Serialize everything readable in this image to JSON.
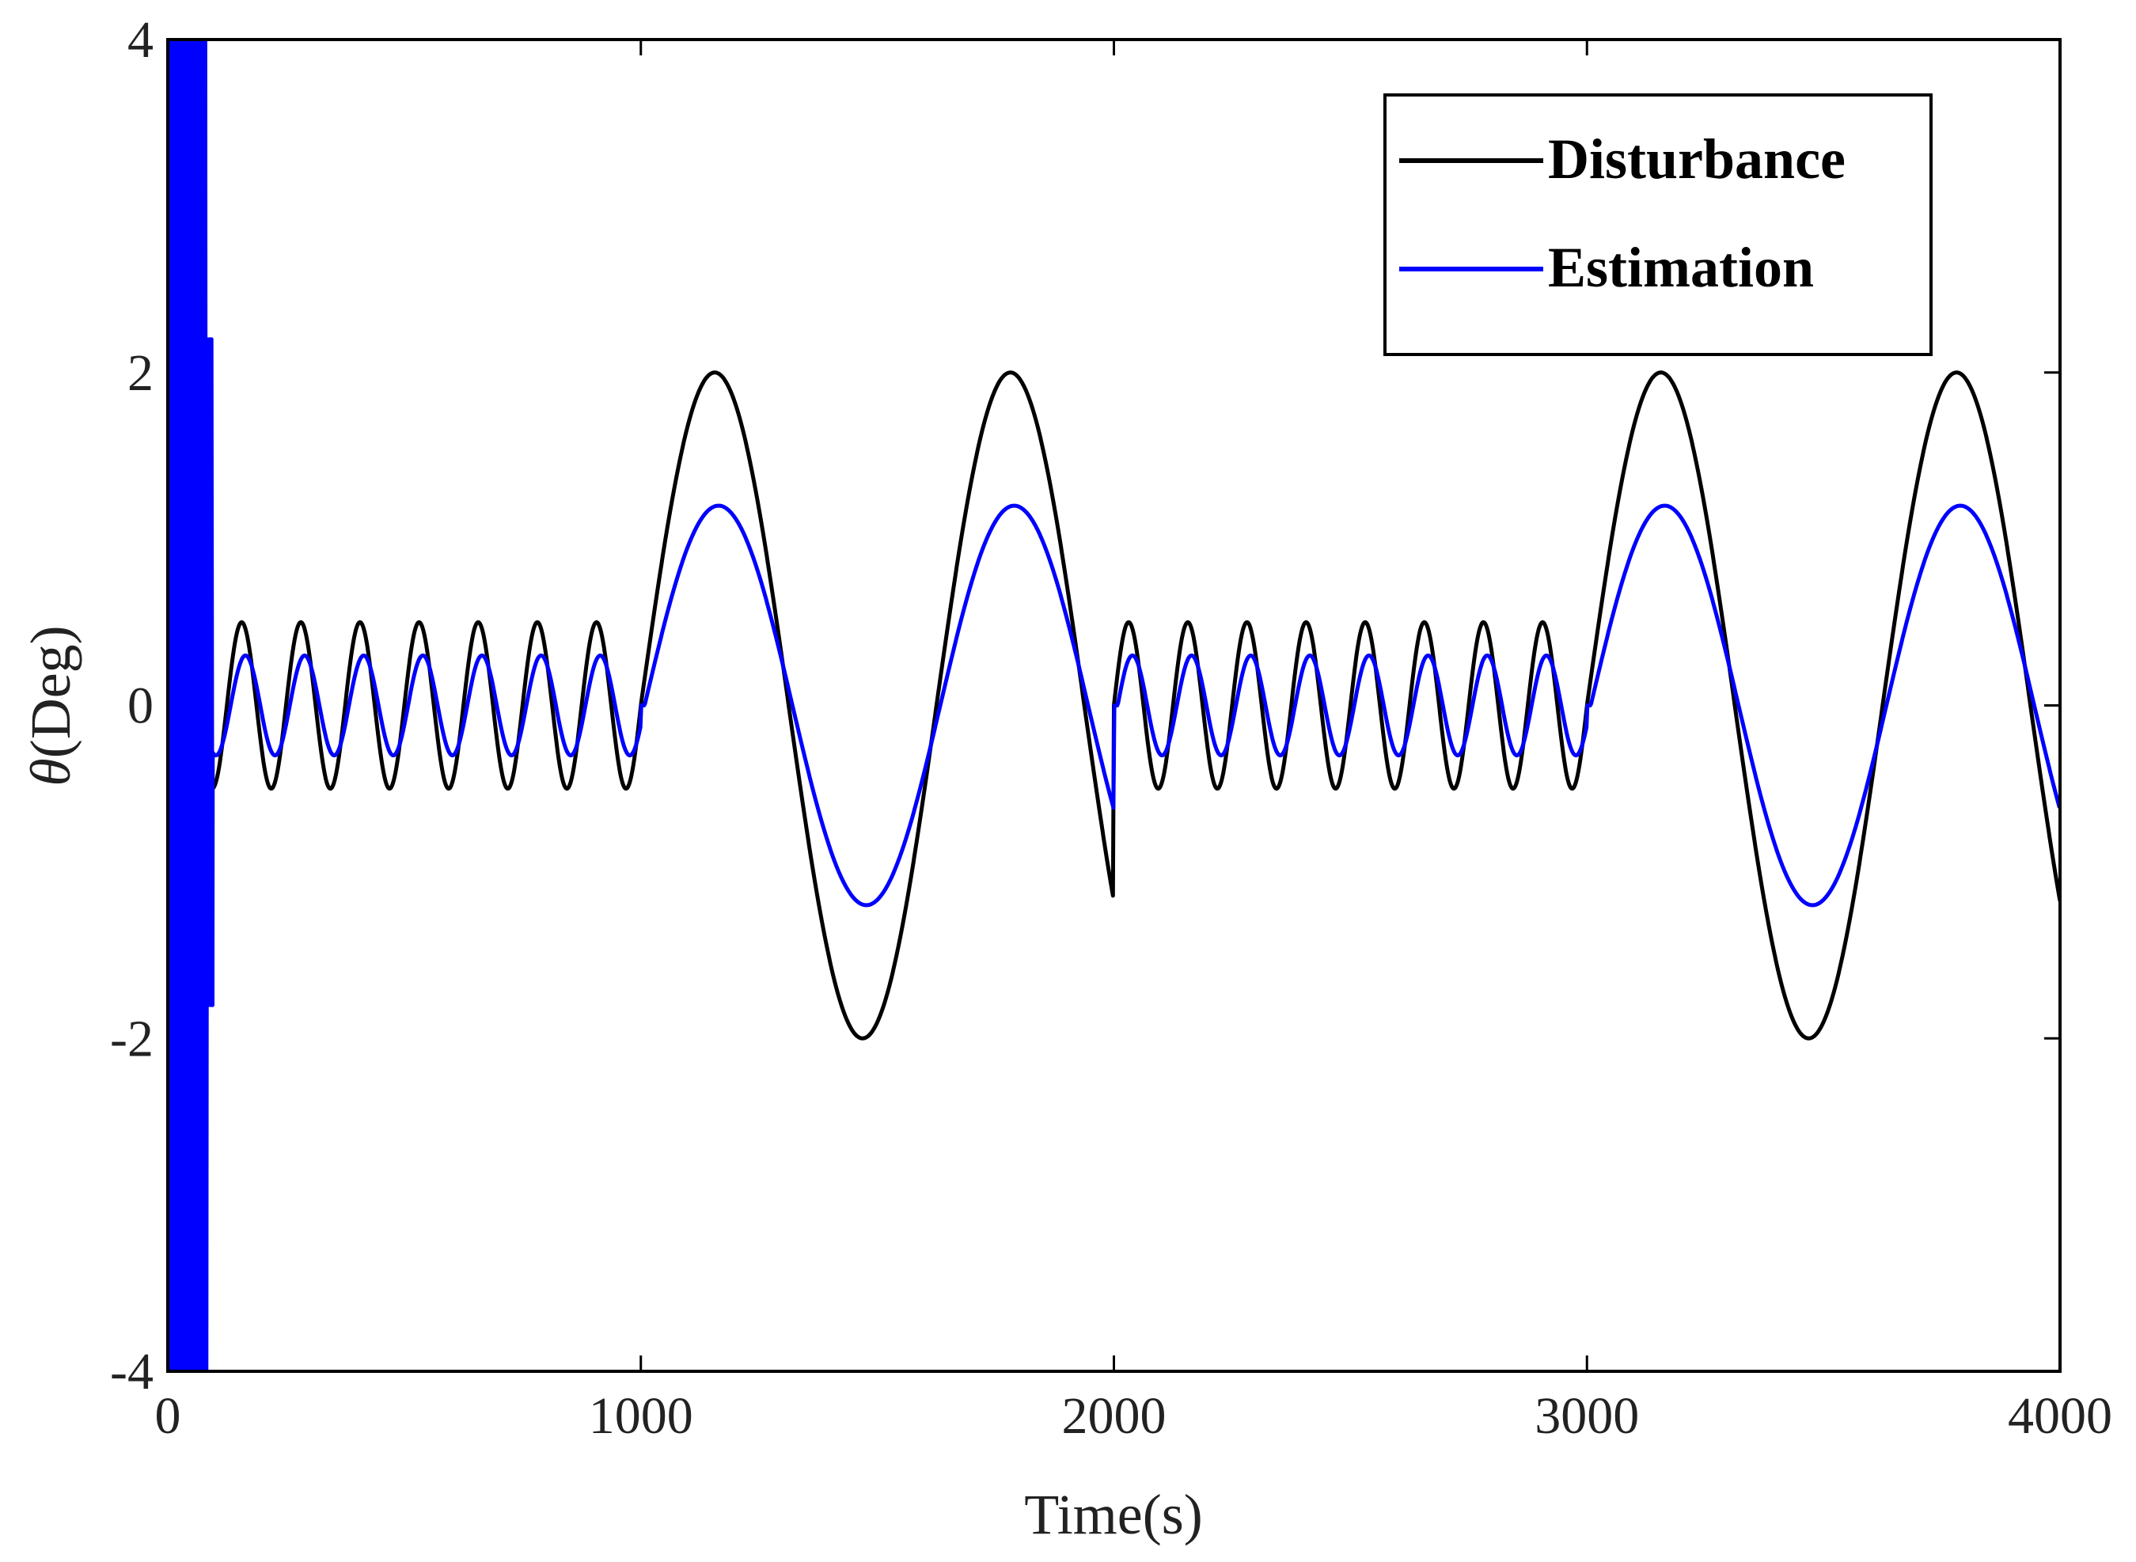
{
  "chart_data": {
    "type": "line",
    "title": "",
    "xlabel": "Time(s)",
    "ylabel_symbol": "θ",
    "ylabel_unit": "(Deg)",
    "xlim": [
      0,
      4000
    ],
    "ylim": [
      -4,
      4
    ],
    "xticks": [
      0,
      1000,
      2000,
      3000,
      4000
    ],
    "yticks": [
      -4,
      -2,
      0,
      2,
      4
    ],
    "xtick_labels": [
      "0",
      "1000",
      "2000",
      "3000",
      "4000"
    ],
    "ytick_labels": [
      "-4",
      "-2",
      "0",
      "2",
      "4"
    ],
    "grid": false,
    "legend_position": "top-right",
    "segments": [
      {
        "start": 0,
        "end": 1000,
        "amplitude": 0.5,
        "period": 125
      },
      {
        "start": 1000,
        "end": 2000,
        "amplitude": 2.0,
        "period": 625
      },
      {
        "start": 2000,
        "end": 3000,
        "amplitude": 0.5,
        "period": 125
      },
      {
        "start": 3000,
        "end": 4000,
        "amplitude": 2.0,
        "period": 625
      }
    ],
    "series": [
      {
        "name": "Disturbance",
        "color": "#000000",
        "gain": 1.0,
        "lag": 0
      },
      {
        "name": "Estimation",
        "color": "#0000ff",
        "gain": 0.6,
        "lag": 8,
        "initial_transient_end": 95
      }
    ]
  }
}
